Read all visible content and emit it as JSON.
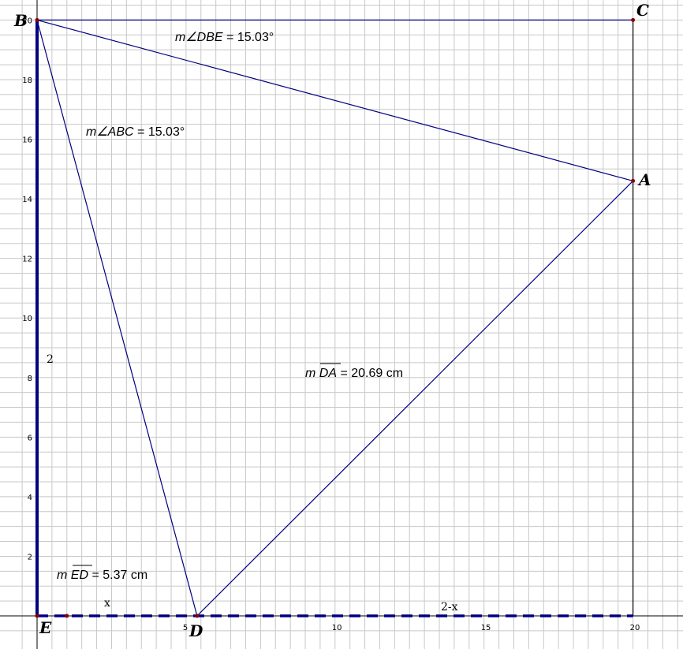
{
  "diagram": {
    "axis": {
      "x_ticks": [
        "5",
        "10",
        "15",
        "20"
      ],
      "y_ticks": [
        "2",
        "4",
        "6",
        "8",
        "10",
        "12",
        "14",
        "16",
        "18",
        "20"
      ]
    },
    "points": {
      "B": "B",
      "C": "C",
      "A": "A",
      "E": "E",
      "D": "D"
    },
    "measurements": {
      "angle_dbe": {
        "prefix": "m∠DBE",
        "value": " = 15.03°"
      },
      "angle_abc": {
        "prefix": "m∠ABC",
        "value": " = 15.03°"
      },
      "seg_da": {
        "m": "m ",
        "seg": "DA",
        "value": " = 20.69 cm"
      },
      "seg_ed": {
        "m": "m ",
        "seg": "ED",
        "value": " = 5.37 cm"
      }
    },
    "variables": {
      "left_side": "2",
      "x_label": "x",
      "rest_label": "2-x"
    },
    "geometry": {
      "B": [
        0,
        20
      ],
      "C": [
        20,
        20
      ],
      "A": [
        20,
        14.6
      ],
      "E": [
        0,
        0
      ],
      "D": [
        5.37,
        0
      ]
    },
    "colors": {
      "figure": "#000080",
      "frame": "#000000",
      "grid": "#c8c8c8",
      "point": "#8b0000"
    }
  }
}
